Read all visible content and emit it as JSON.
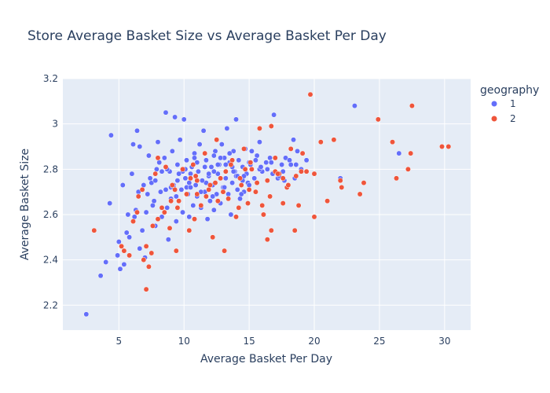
{
  "chart_data": {
    "type": "scatter",
    "title": "Store Average Basket Size vs Average Basket Per Day",
    "xlabel": "Average Basket Per Day",
    "ylabel": "Average Basket Size",
    "xlim": [
      0.7,
      32
    ],
    "ylim": [
      2.09,
      3.2
    ],
    "xticks": [
      5,
      10,
      15,
      20,
      25,
      30
    ],
    "yticks": [
      2.2,
      2.4,
      2.6,
      2.8,
      3.0,
      3.2
    ],
    "ytick_labels": [
      "2.2",
      "2.4",
      "2.6",
      "2.8",
      "3",
      "3.2"
    ],
    "legend_title": "geography",
    "legend_position": "top-right",
    "series": [
      {
        "name": "1",
        "color": "#636efa",
        "x": [
          2.5,
          3.6,
          4.0,
          4.3,
          4.4,
          4.9,
          5.0,
          5.1,
          5.3,
          5.4,
          5.6,
          5.8,
          6.0,
          6.1,
          6.3,
          6.4,
          6.6,
          6.6,
          6.8,
          7.0,
          7.1,
          7.3,
          7.5,
          7.6,
          7.8,
          7.9,
          8.0,
          8.2,
          8.3,
          8.5,
          8.6,
          8.8,
          8.9,
          9.0,
          9.1,
          9.2,
          9.3,
          9.4,
          9.5,
          9.6,
          9.7,
          9.8,
          9.9,
          10.0,
          10.1,
          10.2,
          10.3,
          10.4,
          10.5,
          10.6,
          10.7,
          10.8,
          10.9,
          11.0,
          11.1,
          11.2,
          11.3,
          11.4,
          11.5,
          11.6,
          11.7,
          11.8,
          11.9,
          12.0,
          12.1,
          12.2,
          12.3,
          12.4,
          12.5,
          12.6,
          12.7,
          12.8,
          12.9,
          13.0,
          13.1,
          13.2,
          13.3,
          13.4,
          13.5,
          13.6,
          13.7,
          13.8,
          13.9,
          14.0,
          14.1,
          14.2,
          14.3,
          14.4,
          14.5,
          14.6,
          14.7,
          14.8,
          14.9,
          15.0,
          15.2,
          15.4,
          15.6,
          15.8,
          16.0,
          16.3,
          16.6,
          16.9,
          17.2,
          17.5,
          17.8,
          18.1,
          18.4,
          18.7,
          19.0,
          20.0,
          22.0,
          23.1,
          26.5,
          8.7,
          9.4,
          10.2,
          10.9,
          11.6,
          12.3,
          13.1,
          13.8,
          14.5,
          15.1,
          6.2,
          7.2,
          8.1,
          9.0,
          9.9,
          10.8,
          11.7,
          12.6,
          13.5,
          14.4,
          5.7,
          6.5,
          7.4,
          8.3,
          9.2,
          10.1,
          11.0,
          11.9,
          12.8,
          13.7,
          14.6,
          15.5,
          16.4,
          17.3,
          18.2,
          7.7,
          8.6,
          9.5,
          10.4,
          11.3,
          12.2,
          13.1,
          14.0,
          14.9,
          15.8,
          16.7,
          17.6,
          18.5,
          19.4,
          6.9,
          7.8,
          8.7,
          9.6,
          10.5,
          11.4,
          12.3,
          13.2,
          14.1,
          15.0,
          15.9,
          16.8,
          17.7,
          18.6
        ],
        "y": [
          2.16,
          2.33,
          2.39,
          2.65,
          2.95,
          2.42,
          2.48,
          2.36,
          2.73,
          2.38,
          2.52,
          2.5,
          2.78,
          2.91,
          2.62,
          2.97,
          2.45,
          2.9,
          2.53,
          2.41,
          2.61,
          2.86,
          2.74,
          2.64,
          2.55,
          2.8,
          2.92,
          2.7,
          2.59,
          2.85,
          3.05,
          2.49,
          2.79,
          2.67,
          2.88,
          2.73,
          3.03,
          2.57,
          2.82,
          2.66,
          2.93,
          2.71,
          2.61,
          3.02,
          2.76,
          2.84,
          2.69,
          2.59,
          2.78,
          2.81,
          2.64,
          2.87,
          2.73,
          2.68,
          2.79,
          2.91,
          2.63,
          2.75,
          2.97,
          2.7,
          2.84,
          2.58,
          2.77,
          2.66,
          2.81,
          2.73,
          2.62,
          2.88,
          2.69,
          2.78,
          2.82,
          2.65,
          2.91,
          2.72,
          2.85,
          2.76,
          2.98,
          2.69,
          2.83,
          2.6,
          2.74,
          2.88,
          2.79,
          3.02,
          2.71,
          2.84,
          2.67,
          2.76,
          2.81,
          2.7,
          2.89,
          2.78,
          2.74,
          2.83,
          2.88,
          2.76,
          2.86,
          2.92,
          2.79,
          2.83,
          2.85,
          3.04,
          2.76,
          2.82,
          2.85,
          2.84,
          2.93,
          2.88,
          2.8,
          2.78,
          2.76,
          3.08,
          2.87,
          2.63,
          2.68,
          2.72,
          2.77,
          2.81,
          2.86,
          2.72,
          2.79,
          2.75,
          2.82,
          2.59,
          2.69,
          2.83,
          2.72,
          2.79,
          2.85,
          2.74,
          2.82,
          2.87,
          2.69,
          2.6,
          2.7,
          2.76,
          2.79,
          2.72,
          2.8,
          2.83,
          2.78,
          2.85,
          2.81,
          2.77,
          2.84,
          2.8,
          2.77,
          2.82,
          2.66,
          2.71,
          2.75,
          2.74,
          2.7,
          2.68,
          2.72,
          2.77,
          2.74,
          2.8,
          2.83,
          2.79,
          2.76,
          2.84,
          2.73,
          2.75,
          2.8,
          2.78,
          2.72,
          2.75,
          2.79,
          2.82,
          2.77,
          2.73,
          2.81,
          2.78,
          2.75,
          2.82
        ]
      },
      {
        "name": "2",
        "color": "#ef553b",
        "x": [
          3.1,
          5.2,
          5.4,
          5.8,
          6.1,
          6.4,
          6.5,
          6.8,
          7.1,
          7.3,
          7.6,
          7.8,
          8.0,
          8.3,
          8.6,
          8.9,
          9.1,
          9.4,
          9.6,
          9.9,
          10.2,
          10.4,
          10.7,
          11.0,
          11.3,
          11.6,
          11.9,
          12.2,
          12.5,
          12.8,
          13.1,
          13.4,
          13.7,
          14.0,
          14.3,
          14.6,
          14.9,
          15.2,
          15.5,
          15.8,
          16.1,
          16.4,
          16.7,
          17.0,
          17.3,
          17.6,
          17.9,
          18.2,
          18.5,
          18.8,
          19.1,
          19.4,
          19.7,
          20.0,
          20.5,
          21.0,
          21.5,
          22.1,
          23.8,
          24.9,
          26.0,
          26.3,
          27.2,
          27.5,
          29.8,
          30.3,
          22.0,
          23.5,
          27.4,
          17.0,
          16.4,
          16.7,
          15.1,
          9.0,
          10.5,
          13.0,
          8.0,
          12.0,
          7.1,
          11.0,
          14.7,
          9.5,
          10.9,
          12.4,
          13.6,
          15.0,
          16.0,
          17.2,
          18.0,
          19.0,
          20.0,
          8.5,
          9.3,
          10.8,
          11.7,
          13.2,
          14.2,
          15.6,
          16.6,
          17.6,
          18.6,
          12.6,
          14.4,
          6.9,
          7.5
        ],
        "y": [
          2.53,
          2.46,
          2.44,
          2.42,
          2.57,
          2.61,
          2.68,
          2.71,
          2.27,
          2.37,
          2.55,
          2.78,
          2.85,
          2.63,
          2.81,
          2.54,
          2.73,
          2.44,
          2.66,
          2.8,
          2.69,
          2.53,
          2.82,
          2.75,
          2.64,
          2.87,
          2.71,
          2.5,
          2.93,
          2.76,
          2.44,
          2.67,
          2.84,
          2.59,
          2.76,
          2.89,
          2.65,
          2.8,
          2.7,
          2.98,
          2.6,
          2.75,
          2.99,
          2.85,
          2.78,
          2.65,
          2.72,
          2.89,
          2.53,
          2.64,
          2.87,
          2.79,
          3.13,
          2.59,
          2.92,
          2.66,
          2.93,
          2.72,
          2.74,
          3.02,
          2.92,
          2.76,
          2.8,
          3.08,
          2.9,
          2.9,
          2.75,
          2.69,
          2.87,
          2.79,
          2.49,
          2.53,
          2.83,
          2.66,
          2.76,
          2.7,
          2.58,
          2.73,
          2.46,
          2.69,
          2.8,
          2.63,
          2.77,
          2.74,
          2.82,
          2.71,
          2.64,
          2.78,
          2.73,
          2.79,
          2.78,
          2.61,
          2.71,
          2.58,
          2.68,
          2.79,
          2.63,
          2.74,
          2.68,
          2.76,
          2.77,
          2.66,
          2.73,
          2.4,
          2.43
        ]
      }
    ]
  }
}
